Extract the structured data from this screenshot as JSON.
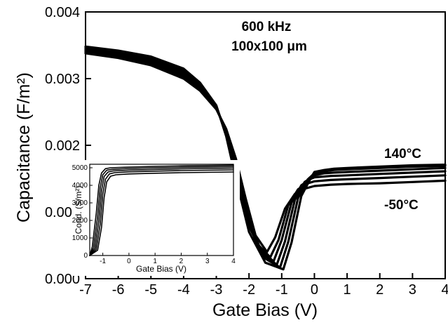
{
  "chart_data": [
    {
      "type": "line",
      "xlabel": "Gate Bias (V)",
      "ylabel": "Capacitance (F/m²)",
      "xlim": [
        -7,
        4
      ],
      "ylim": [
        0,
        0.004
      ],
      "x_ticks": [
        "-7",
        "-6",
        "-5",
        "-4",
        "-3",
        "-2",
        "-1",
        "0",
        "1",
        "2",
        "3",
        "4"
      ],
      "y_ticks": [
        "0.000",
        "0.001",
        "0.002",
        "0.003",
        "0.004"
      ],
      "annotations": [
        "600 kHz",
        "100x100 μm",
        "140°C",
        "-50°C"
      ],
      "grid": false,
      "curve_params": {
        "vmin": [
          -1.45,
          -1.35,
          -1.25,
          -1.15,
          -1.05,
          -0.95
        ],
        "cmin": [
          0.0004,
          0.00032,
          0.00026,
          0.00021,
          0.00017,
          0.00014
        ]
      },
      "series": [
        {
          "x": [
            -7,
            -6,
            -5,
            -4,
            -3.5,
            -3,
            -2.7,
            -2.4,
            -2.1,
            -1.8,
            -1.45,
            -1.2,
            -0.9,
            -0.6,
            -0.3,
            0,
            0.5,
            1,
            2,
            3,
            4
          ],
          "values": [
            0.00338,
            0.00331,
            0.0032,
            0.003,
            0.00282,
            0.00254,
            0.00225,
            0.0018,
            0.0012,
            0.00065,
            0.0004,
            0.00062,
            0.00105,
            0.00127,
            0.00135,
            0.00139,
            0.00141,
            0.00142,
            0.00143,
            0.00145,
            0.00147
          ]
        },
        {
          "x": [
            -7,
            -6,
            -5,
            -4,
            -3.5,
            -3,
            -2.7,
            -2.4,
            -2.1,
            -1.8,
            -1.35,
            -1.1,
            -0.8,
            -0.5,
            -0.2,
            0,
            0.5,
            1,
            2,
            3,
            4
          ],
          "values": [
            0.0034,
            0.00334,
            0.00323,
            0.00303,
            0.00284,
            0.00255,
            0.00222,
            0.00175,
            0.0011,
            0.00055,
            0.00032,
            0.00058,
            0.0011,
            0.00134,
            0.00143,
            0.00146,
            0.00148,
            0.00149,
            0.00151,
            0.00153,
            0.00155
          ]
        },
        {
          "x": [
            -7,
            -6,
            -5,
            -4,
            -3.5,
            -3,
            -2.7,
            -2.4,
            -2.1,
            -1.7,
            -1.25,
            -1.0,
            -0.7,
            -0.4,
            -0.1,
            0,
            0.5,
            1,
            2,
            3,
            4
          ],
          "values": [
            0.00342,
            0.00336,
            0.00326,
            0.00306,
            0.00287,
            0.00257,
            0.0022,
            0.00168,
            0.001,
            0.00045,
            0.00026,
            0.00058,
            0.00114,
            0.0014,
            0.0015,
            0.00152,
            0.00154,
            0.00155,
            0.00157,
            0.00159,
            0.00161
          ]
        },
        {
          "x": [
            -7,
            -6,
            -5,
            -4,
            -3.5,
            -3,
            -2.7,
            -2.4,
            -2.0,
            -1.6,
            -1.15,
            -0.9,
            -0.6,
            -0.3,
            0,
            0.3,
            0.6,
            1,
            2,
            3,
            4
          ],
          "values": [
            0.00344,
            0.00338,
            0.00328,
            0.00309,
            0.0029,
            0.00258,
            0.00218,
            0.00162,
            0.00088,
            0.00038,
            0.00021,
            0.00056,
            0.00118,
            0.00145,
            0.00155,
            0.00158,
            0.00159,
            0.0016,
            0.00162,
            0.00164,
            0.00166
          ]
        },
        {
          "x": [
            -7,
            -6,
            -5,
            -4,
            -3.5,
            -3,
            -2.7,
            -2.4,
            -2.0,
            -1.5,
            -1.05,
            -0.8,
            -0.5,
            -0.2,
            0,
            0.3,
            0.6,
            1,
            2,
            3,
            4
          ],
          "values": [
            0.00346,
            0.0034,
            0.00331,
            0.00312,
            0.00292,
            0.00259,
            0.00216,
            0.00156,
            0.00078,
            0.0003,
            0.00017,
            0.00055,
            0.00121,
            0.00149,
            0.00158,
            0.00161,
            0.00163,
            0.00164,
            0.00166,
            0.00168,
            0.00169
          ]
        },
        {
          "x": [
            -7,
            -6,
            -5,
            -4,
            -3.5,
            -3,
            -2.7,
            -2.4,
            -2.0,
            -1.5,
            -0.95,
            -0.7,
            -0.4,
            -0.1,
            0,
            0.3,
            0.6,
            1,
            2,
            3,
            4
          ],
          "values": [
            0.00348,
            0.00342,
            0.00333,
            0.00315,
            0.00294,
            0.0026,
            0.00214,
            0.0015,
            0.0007,
            0.00024,
            0.00014,
            0.00054,
            0.00124,
            0.00152,
            0.0016,
            0.00163,
            0.00165,
            0.00166,
            0.00168,
            0.0017,
            0.00171
          ]
        }
      ]
    },
    {
      "type": "line",
      "xlabel": "Gate Bias (V)",
      "ylabel": "Cond. (S/m²)",
      "xlim": [
        -1.5,
        4
      ],
      "ylim": [
        0,
        5200
      ],
      "x_ticks": [
        "-1",
        "0",
        "1",
        "2",
        "3",
        "4"
      ],
      "y_ticks": [
        "0",
        "1000",
        "2000",
        "3000",
        "4000",
        "5000"
      ],
      "grid": false,
      "series": [
        {
          "x": [
            -1.5,
            -1.2,
            -1.05,
            -0.95,
            -0.85,
            -0.7,
            -0.5,
            0,
            1,
            2,
            3,
            4
          ],
          "values": [
            0,
            300,
            1600,
            3300,
            4200,
            4520,
            4600,
            4650,
            4690,
            4720,
            4740,
            4760
          ]
        },
        {
          "x": [
            -1.5,
            -1.25,
            -1.1,
            -1.0,
            -0.9,
            -0.75,
            -0.55,
            0,
            1,
            2,
            3,
            4
          ],
          "values": [
            0,
            350,
            1800,
            3500,
            4350,
            4650,
            4720,
            4770,
            4810,
            4840,
            4860,
            4880
          ]
        },
        {
          "x": [
            -1.5,
            -1.3,
            -1.15,
            -1.05,
            -0.95,
            -0.8,
            -0.6,
            0,
            1,
            2,
            3,
            4
          ],
          "values": [
            0,
            400,
            2000,
            3700,
            4500,
            4760,
            4820,
            4870,
            4910,
            4940,
            4960,
            4980
          ]
        },
        {
          "x": [
            -1.5,
            -1.35,
            -1.2,
            -1.1,
            -1.0,
            -0.85,
            -0.65,
            0,
            1,
            2,
            3,
            4
          ],
          "values": [
            0,
            450,
            2200,
            3850,
            4600,
            4860,
            4910,
            4960,
            5000,
            5030,
            5050,
            5070
          ]
        },
        {
          "x": [
            -1.5,
            -1.4,
            -1.25,
            -1.15,
            -1.05,
            -0.9,
            -0.7,
            0,
            1,
            2,
            3,
            4
          ],
          "values": [
            0,
            500,
            2400,
            4000,
            4700,
            4950,
            5000,
            5040,
            5080,
            5110,
            5130,
            5150
          ]
        }
      ]
    }
  ]
}
